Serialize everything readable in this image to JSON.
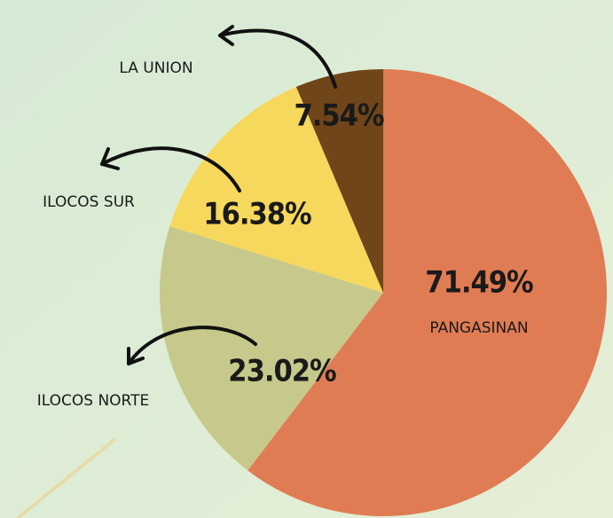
{
  "chart_data": {
    "type": "pie",
    "categories": [
      "PANGASINAN",
      "ILOCOS NORTE",
      "ILOCOS SUR",
      "LA UNION"
    ],
    "values": [
      71.49,
      23.02,
      16.38,
      7.54
    ],
    "value_labels": [
      "71.49%",
      "23.02%",
      "16.38%",
      "7.54%"
    ],
    "colors": [
      "#e07c54",
      "#c6c98b",
      "#f6d85c",
      "#6f4519"
    ]
  }
}
